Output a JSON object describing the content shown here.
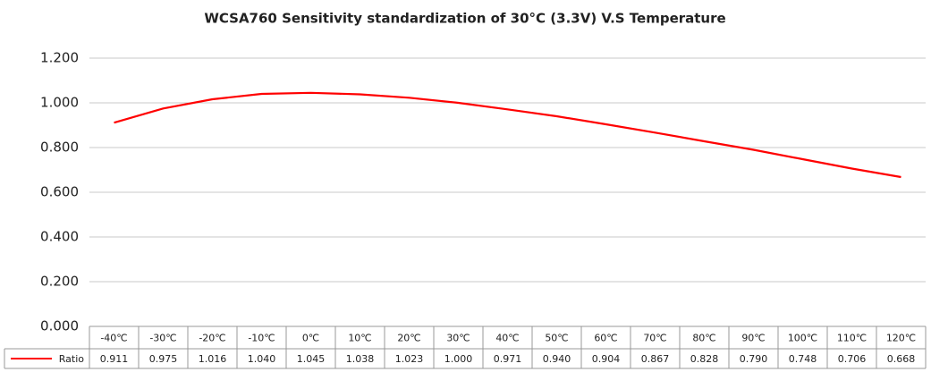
{
  "chart_data": {
    "type": "line",
    "title": "WCSA760 Sensitivity standardization of 30°C (3.3V) V.S Temperature",
    "categories": [
      "-40℃",
      "-30℃",
      "-20℃",
      "-10℃",
      "0℃",
      "10℃",
      "20℃",
      "30℃",
      "40℃",
      "50℃",
      "60℃",
      "70℃",
      "80℃",
      "90℃",
      "100℃",
      "110℃",
      "120℃"
    ],
    "series": [
      {
        "name": "Ratio",
        "color": "#ff0000",
        "values": [
          0.911,
          0.975,
          1.016,
          1.04,
          1.045,
          1.038,
          1.023,
          1,
          0.971,
          0.94,
          0.904,
          0.867,
          0.828,
          0.79,
          0.748,
          0.706,
          0.668
        ],
        "value_labels": [
          "0.911",
          "0.975",
          "1.016",
          "1.040",
          "1.045",
          "1.038",
          "1.023",
          "1.000",
          "0.971",
          "0.940",
          "0.904",
          "0.867",
          "0.828",
          "0.790",
          "0.748",
          "0.706",
          "0.668"
        ]
      }
    ],
    "ylim": [
      0,
      1.2
    ],
    "yticks": [
      {
        "value": 0,
        "label": "0.000"
      },
      {
        "value": 0.2,
        "label": "0.200"
      },
      {
        "value": 0.4,
        "label": "0.400"
      },
      {
        "value": 0.6,
        "label": "0.600"
      },
      {
        "value": 0.8,
        "label": "0.800"
      },
      {
        "value": 1,
        "label": "1.000"
      },
      {
        "value": 1.2,
        "label": "1.200"
      }
    ],
    "grid": true
  }
}
